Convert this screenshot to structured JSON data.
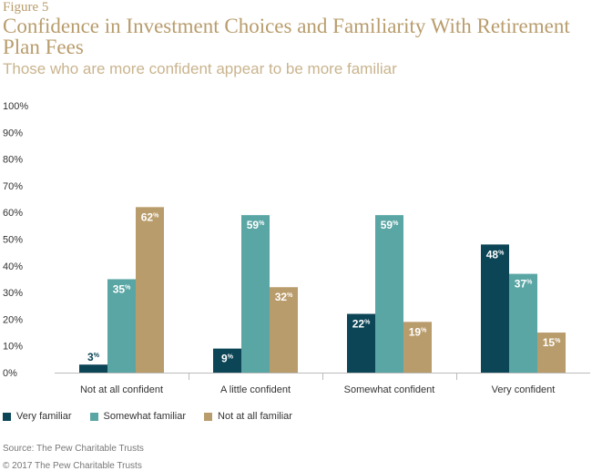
{
  "figure_label": "Figure 5",
  "title": "Confidence in Investment Choices and Familiarity With Retirement Plan Fees",
  "subtitle": "Those who are more confident appear to be more familiar",
  "source": "Source: The Pew Charitable Trusts",
  "copyright": "© 2017 The Pew Charitable Trusts",
  "chart_data": {
    "type": "bar",
    "title": "Confidence in Investment Choices and Familiarity With Retirement Plan Fees",
    "subtitle": "Those who are more confident appear to be more familiar",
    "categories": [
      "Not at all confident",
      "A little confident",
      "Somewhat confident",
      "Very confident"
    ],
    "series": [
      {
        "name": "Very familiar",
        "color": "#0b4556",
        "values": [
          3,
          9,
          22,
          48
        ]
      },
      {
        "name": "Somewhat familiar",
        "color": "#5aa6a4",
        "values": [
          35,
          59,
          59,
          37
        ]
      },
      {
        "name": "Not at all familiar",
        "color": "#b99c6b",
        "values": [
          62,
          32,
          19,
          15
        ]
      }
    ],
    "data_labels": [
      [
        "3",
        "35",
        "62"
      ],
      [
        "9",
        "59",
        "32"
      ],
      [
        "22",
        "59",
        "19"
      ],
      [
        "48",
        "37",
        "15"
      ]
    ],
    "label_unit": "%",
    "y_ticks": [
      "0%",
      "10%",
      "20%",
      "30%",
      "40%",
      "50%",
      "60%",
      "70%",
      "80%",
      "90%",
      "100%"
    ],
    "ylim": [
      0,
      100
    ],
    "legend_position": "bottom-left",
    "grid": false
  }
}
